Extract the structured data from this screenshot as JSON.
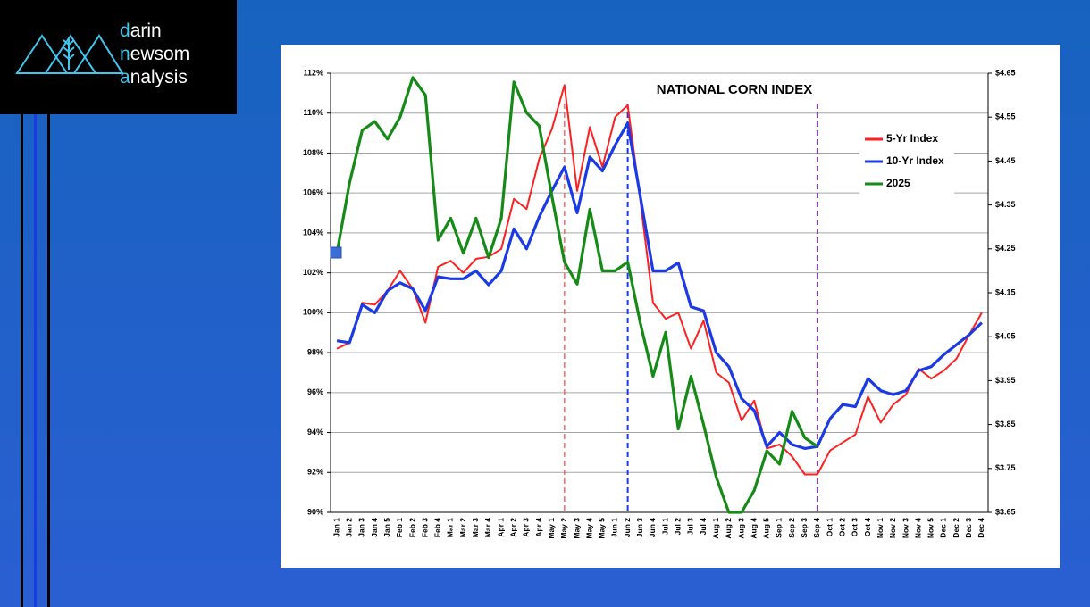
{
  "logo": {
    "lines": [
      "darin",
      "newsom",
      "analysis"
    ]
  },
  "chart_data": {
    "type": "line",
    "title": "NATIONAL CORN INDEX",
    "categories": [
      "Jan 1",
      "Jan 2",
      "Jan 3",
      "Jan 4",
      "Jan 5",
      "Feb 1",
      "Feb 2",
      "Feb 3",
      "Feb 4",
      "Mar 1",
      "Mar 2",
      "Mar 3",
      "Mar 4",
      "Apr 1",
      "Apr 2",
      "Apr 3",
      "Apr 4",
      "May 1",
      "May 2",
      "May 3",
      "May 4",
      "May 5",
      "Jun 1",
      "Jun 2",
      "Jun 3",
      "Jun 4",
      "Jul 1",
      "Jul 2",
      "Jul 3",
      "Jul 4",
      "Aug 1",
      "Aug 2",
      "Aug 3",
      "Aug 4",
      "Aug 5",
      "Sep 1",
      "Sep 2",
      "Sep 3",
      "Sep 4",
      "Oct 1",
      "Oct 2",
      "Oct 3",
      "Oct 4",
      "Nov 1",
      "Nov 2",
      "Nov 3",
      "Nov 4",
      "Nov 5",
      "Dec 1",
      "Dec 2",
      "Dec 3",
      "Dec 4"
    ],
    "series": [
      {
        "name": "5-Yr Index",
        "color": "#ff1f1f",
        "values": [
          98.2,
          98.5,
          100.5,
          100.4,
          101.1,
          102.1,
          101.2,
          99.5,
          102.3,
          102.6,
          102.0,
          102.7,
          102.8,
          103.2,
          105.7,
          105.2,
          107.7,
          109.2,
          111.4,
          106.1,
          109.3,
          107.3,
          109.8,
          110.4,
          105.6,
          100.5,
          99.7,
          100.0,
          98.2,
          99.6,
          97.0,
          96.5,
          94.6,
          95.6,
          93.2,
          93.4,
          92.8,
          91.9,
          91.9,
          93.1,
          93.5,
          93.9,
          95.8,
          94.5,
          95.4,
          95.9,
          97.2,
          96.7,
          97.1,
          97.7,
          98.9,
          100.0
        ]
      },
      {
        "name": "10-Yr Index",
        "color": "#1a3ae6",
        "values": [
          98.6,
          98.5,
          100.4,
          100.0,
          101.1,
          101.5,
          101.2,
          100.1,
          101.8,
          101.7,
          101.7,
          102.1,
          101.4,
          102.1,
          104.2,
          103.2,
          104.8,
          106.1,
          107.3,
          105.0,
          107.8,
          107.1,
          108.4,
          109.5,
          105.8,
          102.1,
          102.1,
          102.5,
          100.3,
          100.1,
          98.0,
          97.3,
          95.7,
          95.1,
          93.3,
          94.0,
          93.4,
          93.2,
          93.3,
          94.7,
          95.4,
          95.3,
          96.7,
          96.1,
          95.9,
          96.1,
          97.1,
          97.3,
          97.9,
          98.4,
          98.9,
          99.5
        ]
      },
      {
        "name": "2025",
        "color": "#168a16",
        "axis": "y2",
        "values": [
          4.24,
          4.4,
          4.52,
          4.54,
          4.5,
          4.55,
          4.64,
          4.6,
          4.27,
          4.32,
          4.24,
          4.32,
          4.23,
          4.32,
          4.63,
          4.56,
          4.53,
          4.37,
          4.22,
          4.17,
          4.34,
          4.2,
          4.2,
          4.22,
          4.08,
          3.96,
          4.06,
          3.84,
          3.96,
          3.85,
          3.73,
          3.65,
          3.65,
          3.7,
          3.79,
          3.76,
          3.88,
          3.82,
          3.8,
          null,
          null,
          null,
          null,
          null,
          null,
          null,
          null,
          null,
          null,
          null,
          null,
          null
        ]
      }
    ],
    "ylim": [
      90,
      112
    ],
    "yticks": [
      {
        "value": 90,
        "label": "90%"
      },
      {
        "value": 92,
        "label": "92%"
      },
      {
        "value": 94,
        "label": "94%"
      },
      {
        "value": 96,
        "label": "96%"
      },
      {
        "value": 98,
        "label": "98%"
      },
      {
        "value": 100,
        "label": "100%"
      },
      {
        "value": 102,
        "label": "102%"
      },
      {
        "value": 104,
        "label": "104%"
      },
      {
        "value": 106,
        "label": "106%"
      },
      {
        "value": 108,
        "label": "108%"
      },
      {
        "value": 110,
        "label": "110%"
      },
      {
        "value": 112,
        "label": "112%"
      }
    ],
    "y2lim": [
      3.65,
      4.65
    ],
    "y2ticks": [
      {
        "value": 3.65,
        "label": "$3.65"
      },
      {
        "value": 3.75,
        "label": "$3.75"
      },
      {
        "value": 3.85,
        "label": "$3.85"
      },
      {
        "value": 3.95,
        "label": "$3.95"
      },
      {
        "value": 4.05,
        "label": "$4.05"
      },
      {
        "value": 4.15,
        "label": "$4.15"
      },
      {
        "value": 4.25,
        "label": "$4.25"
      },
      {
        "value": 4.35,
        "label": "$4.35"
      },
      {
        "value": 4.45,
        "label": "$4.45"
      },
      {
        "value": 4.55,
        "label": "$4.55"
      },
      {
        "value": 4.65,
        "label": "$4.65"
      }
    ],
    "grid": true,
    "vlines": [
      {
        "at": "May 2",
        "color": "#ff5050"
      },
      {
        "at": "Jun 2",
        "color": "#1a3ae6"
      },
      {
        "at": "Sep 4",
        "color": "#7a3a9a"
      }
    ]
  }
}
